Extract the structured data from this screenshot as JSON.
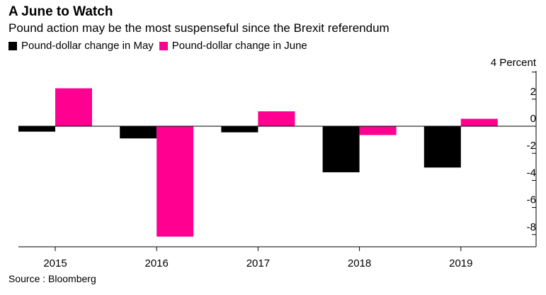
{
  "header": {
    "title": "A June to Watch",
    "subtitle": "Pound action may be the most suspenseful since the Brexit referendum"
  },
  "legend": {
    "items": [
      {
        "label": "Pound-dollar change in May",
        "color": "#000000"
      },
      {
        "label": "Pound-dollar change in June",
        "color": "#ff0090"
      }
    ]
  },
  "footer": {
    "source": "Source : Bloomberg"
  },
  "chart_data": {
    "type": "bar",
    "title": "A June to Watch",
    "subtitle": "Pound action may be the most suspenseful since the Brexit referendum",
    "categories": [
      "2015",
      "2016",
      "2017",
      "2018",
      "2019"
    ],
    "series": [
      {
        "name": "Pound-dollar change in May",
        "color": "#000000",
        "values": [
          -0.4,
          -0.9,
          -0.45,
          -3.4,
          -3.05
        ]
      },
      {
        "name": "Pound-dollar change in June",
        "color": "#ff0090",
        "values": [
          2.8,
          -8.15,
          1.1,
          -0.65,
          0.55
        ]
      }
    ],
    "ylim": [
      -9,
      4
    ],
    "yticks": [
      2,
      0,
      -2,
      -4,
      -6,
      -8
    ],
    "ytick_labels": [
      "2",
      "0",
      "-2",
      "-4",
      "-6",
      "-8"
    ],
    "ylabel": "4 Percent",
    "xlabel": "",
    "y_axis_position": "right",
    "grid": false
  }
}
